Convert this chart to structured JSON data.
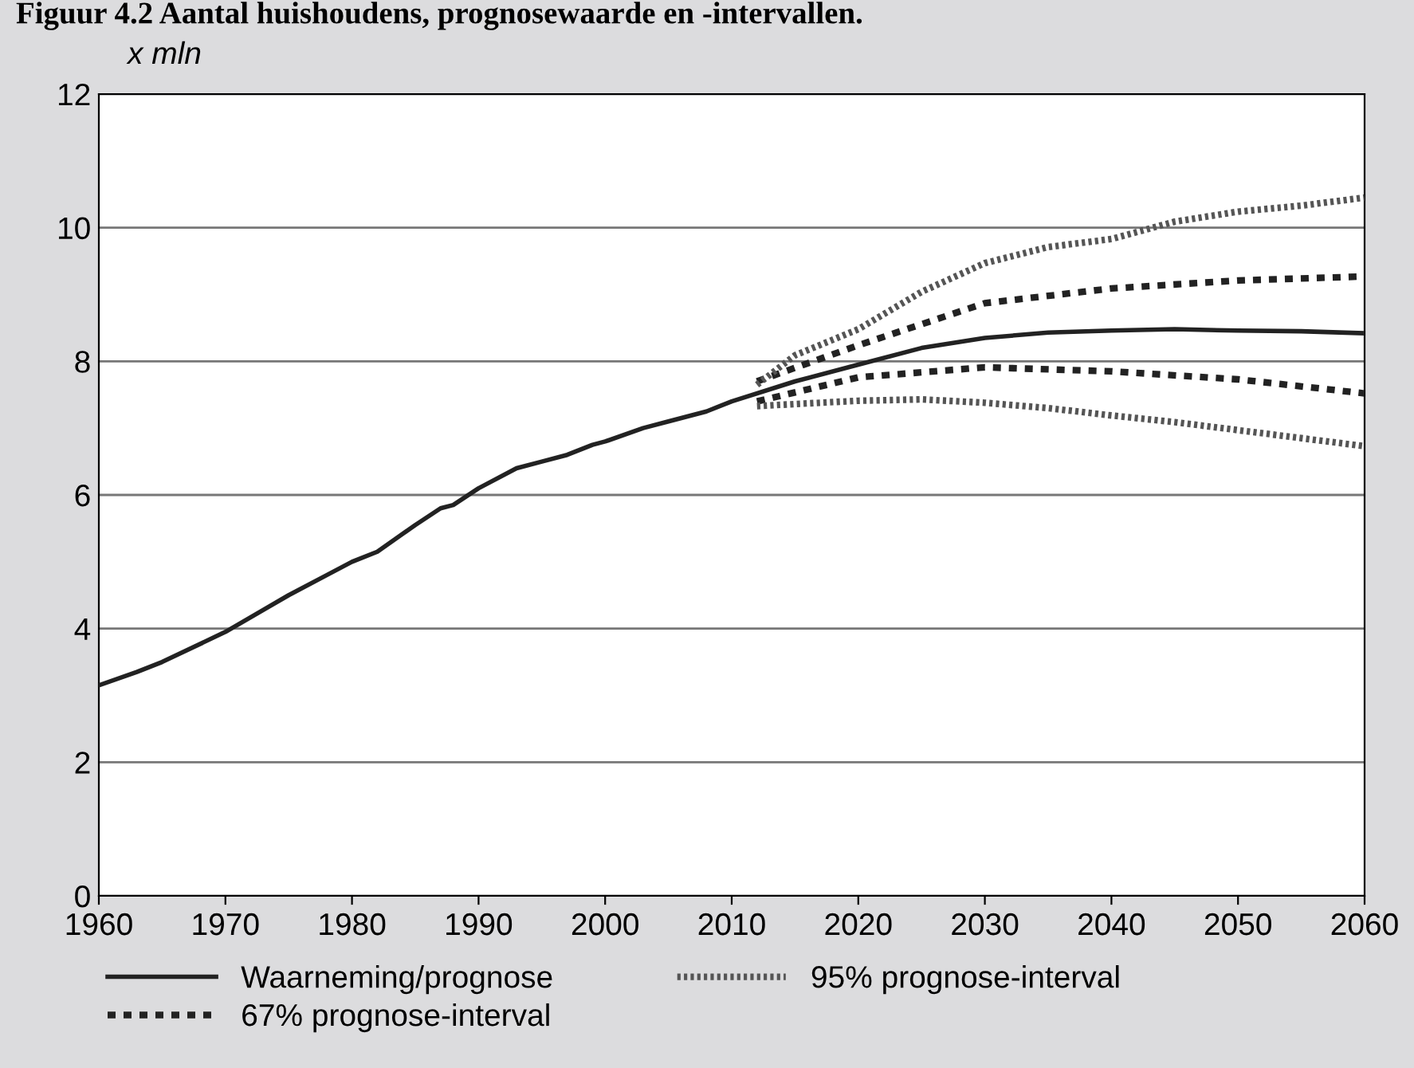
{
  "chart_data": {
    "type": "line",
    "title": "Figuur 4.2 Aantal huishoudens, prognosewaarde en -intervallen.",
    "ylabel": "x mln",
    "xlim": [
      1960,
      2060
    ],
    "xticks": [
      1960,
      1970,
      1980,
      1990,
      2000,
      2010,
      2020,
      2030,
      2040,
      2050,
      2060
    ],
    "ylim": [
      0,
      12
    ],
    "yticks": [
      0,
      2,
      4,
      6,
      8,
      10,
      12
    ],
    "grid": "y",
    "legend": "bottom",
    "series": [
      {
        "name": "Waarneming/prognose",
        "color": "#222222",
        "line_style": "solid",
        "x": [
          1960,
          1963,
          1965,
          1970,
          1975,
          1978,
          1980,
          1982,
          1985,
          1987,
          1988,
          1990,
          1993,
          1995,
          1997,
          1999,
          2000,
          2003,
          2005,
          2008,
          2010,
          2015,
          2020,
          2025,
          2030,
          2035,
          2040,
          2045,
          2050,
          2055,
          2060
        ],
        "values": [
          3.15,
          3.35,
          3.5,
          3.95,
          4.5,
          4.8,
          5.0,
          5.15,
          5.55,
          5.8,
          5.85,
          6.1,
          6.4,
          6.5,
          6.6,
          6.75,
          6.8,
          7.0,
          7.1,
          7.25,
          7.4,
          7.7,
          7.95,
          8.2,
          8.35,
          8.43,
          8.46,
          8.48,
          8.46,
          8.45,
          8.42
        ]
      },
      {
        "name": "67% prognose-interval",
        "color": "#222222",
        "line_style": "dashed",
        "x": [
          2012,
          2020,
          2030,
          2040,
          2050,
          2060
        ],
        "values": [
          7.7,
          8.24,
          8.87,
          9.09,
          9.21,
          9.27
        ]
      },
      {
        "color": "#222222",
        "line_style": "dashed",
        "x": [
          2012,
          2020,
          2030,
          2040,
          2050,
          2060
        ],
        "values": [
          7.4,
          7.76,
          7.91,
          7.85,
          7.73,
          7.52
        ]
      },
      {
        "name": "95% prognose-interval",
        "color": "#555555",
        "line_style": "dotted",
        "x": [
          2012,
          2015,
          2020,
          2025,
          2030,
          2035,
          2040,
          2045,
          2050,
          2055,
          2060
        ],
        "values": [
          7.65,
          8.09,
          8.48,
          9.04,
          9.47,
          9.71,
          9.83,
          10.09,
          10.24,
          10.33,
          10.45
        ]
      },
      {
        "color": "#555555",
        "line_style": "dotted",
        "x": [
          2012,
          2020,
          2025,
          2030,
          2035,
          2040,
          2045,
          2050,
          2055,
          2060
        ],
        "values": [
          7.33,
          7.41,
          7.43,
          7.38,
          7.3,
          7.19,
          7.09,
          6.97,
          6.85,
          6.73
        ]
      }
    ]
  }
}
